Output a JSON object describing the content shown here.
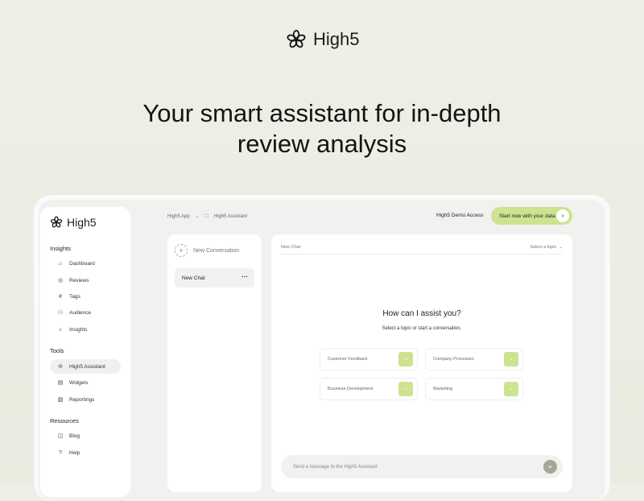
{
  "brand": {
    "name": "High5"
  },
  "hero": {
    "line1": "Your smart assistant for in-depth",
    "line2": "review analysis"
  },
  "sidebar": {
    "logo": "High5",
    "sections": [
      {
        "title": "Insights",
        "items": [
          {
            "label": "Dashboard",
            "icon": "home-icon"
          },
          {
            "label": "Reviews",
            "icon": "reviews-icon"
          },
          {
            "label": "Tags",
            "icon": "hash-icon"
          },
          {
            "label": "Audience",
            "icon": "audience-icon"
          },
          {
            "label": "Insights",
            "icon": "lightbulb-icon"
          }
        ]
      },
      {
        "title": "Tools",
        "items": [
          {
            "label": "High5 Assistant",
            "icon": "assistant-icon",
            "active": true
          },
          {
            "label": "Widgets",
            "icon": "widgets-icon"
          },
          {
            "label": "Reportings",
            "icon": "report-icon"
          }
        ]
      },
      {
        "title": "Resources",
        "items": [
          {
            "label": "Blog",
            "icon": "book-icon"
          },
          {
            "label": "Help",
            "icon": "help-icon"
          }
        ]
      }
    ]
  },
  "header": {
    "breadcrumb": [
      "High5 App",
      "High5 Assistant"
    ],
    "demo": "High5 Demo Access",
    "start": "Start now with your data"
  },
  "chat_list": {
    "new_conversation": "New Conversation",
    "chats": [
      "New Chat"
    ]
  },
  "main": {
    "title": "New Chat",
    "topic_select": "Select a topic",
    "question": "How can I assist you?",
    "subtitle": "Select a topic or start a conversation.",
    "topics": [
      "Customer Feedback",
      "Company Processes",
      "Business Development",
      "Marketing"
    ],
    "input_placeholder": "Send a message to the High5 Assistant"
  },
  "colors": {
    "accent": "#cde38f",
    "background": "#eef0e7"
  }
}
